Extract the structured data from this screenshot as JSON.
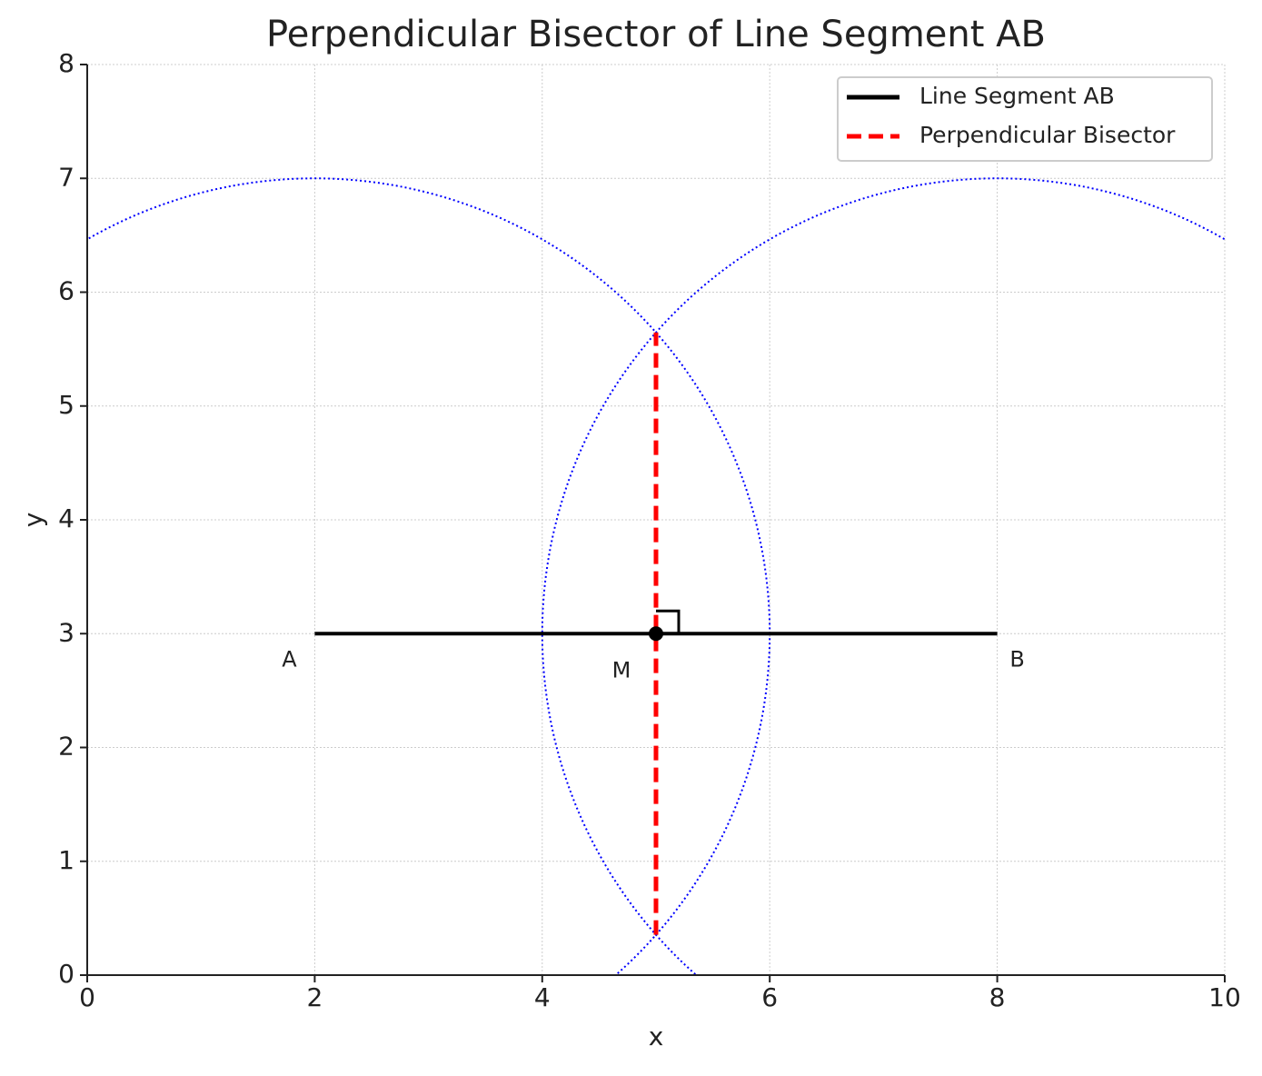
{
  "chart_data": {
    "type": "line",
    "title": "Perpendicular Bisector of Line Segment AB",
    "x_label": "x",
    "y_label": "y",
    "xlim": [
      0,
      10
    ],
    "ylim": [
      0,
      8
    ],
    "xticks": [
      0,
      2,
      4,
      6,
      8,
      10
    ],
    "yticks": [
      0,
      1,
      2,
      3,
      4,
      5,
      6,
      7,
      8
    ],
    "grid": true,
    "legend": "upper right",
    "series": [
      {
        "name": "Line Segment AB",
        "color": "#000000",
        "style": "solid",
        "x": [
          2,
          8
        ],
        "values": [
          3,
          3
        ]
      },
      {
        "name": "Perpendicular Bisector",
        "color": "#ff0000",
        "style": "dashed",
        "x": [
          5,
          5
        ],
        "values": [
          0.354,
          5.646
        ]
      }
    ],
    "circles": [
      {
        "cx": 2,
        "cy": 3,
        "radius": 4,
        "color": "#0000ff"
      },
      {
        "cx": 8,
        "cy": 3,
        "radius": 4,
        "color": "#0000ff"
      }
    ],
    "points": [
      {
        "label": "A",
        "x": 2,
        "y": 3,
        "marker": false
      },
      {
        "label": "B",
        "x": 8,
        "y": 3,
        "marker": false
      },
      {
        "label": "M",
        "x": 5,
        "y": 3,
        "marker": true
      }
    ]
  }
}
